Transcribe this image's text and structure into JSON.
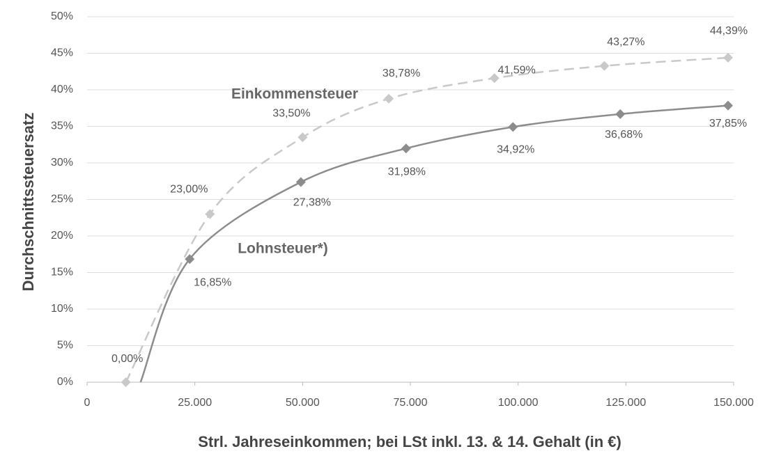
{
  "chart_data": {
    "type": "line",
    "x_label": "Strl. Jahreseinkommen; bei LSt inkl. 13. & 14. Gehalt (in €)",
    "y_label": "Durchschnittssteuersatz",
    "xlim": [
      0,
      150000
    ],
    "xticks": [
      0,
      {
        "value": 25000,
        "label": "25.000"
      },
      {
        "value": 50000,
        "label": "50.000"
      },
      {
        "value": 75000,
        "label": "75.000"
      },
      {
        "value": 100000,
        "label": "100.000"
      },
      {
        "value": 125000,
        "label": "125.000"
      },
      {
        "value": 150000,
        "label": "150.000"
      }
    ],
    "ylim": [
      0,
      50
    ],
    "yticks": [
      {
        "value": 0,
        "label": "0%"
      },
      {
        "value": 5,
        "label": "5%"
      },
      {
        "value": 10,
        "label": "10%"
      },
      {
        "value": 15,
        "label": "15%"
      },
      {
        "value": 20,
        "label": "20%"
      },
      {
        "value": 25,
        "label": "25%"
      },
      {
        "value": 30,
        "label": "30%"
      },
      {
        "value": 35,
        "label": "35%"
      },
      {
        "value": 40,
        "label": "40%"
      },
      {
        "value": 45,
        "label": "45%"
      },
      {
        "value": 50,
        "label": "50%"
      }
    ],
    "grid": true,
    "series": [
      {
        "name": "Einkommensteuer",
        "color": "#c9c9c9",
        "dashed": true,
        "x": [
          9000,
          28500,
          50000,
          70000,
          94500,
          120000,
          148700
        ],
        "values": [
          0,
          23,
          33.5,
          38.78,
          41.59,
          43.27,
          44.39
        ],
        "value_labels": [
          "0,00%",
          "23,00%",
          "33,50%",
          "38,78%",
          "41,59%",
          "43,27%",
          "44,39%"
        ]
      },
      {
        "name": "Lohnsteuer*)",
        "color": "#8c8c8c",
        "dashed": false,
        "x": [
          12400,
          23800,
          49600,
          74000,
          98800,
          123700,
          148700
        ],
        "values": [
          0,
          16.85,
          27.38,
          31.98,
          34.92,
          36.68,
          37.85
        ],
        "value_labels": [
          null,
          "16,85%",
          "27,38%",
          "31,98%",
          "34,92%",
          "36,68%",
          "37,85%"
        ]
      }
    ]
  }
}
